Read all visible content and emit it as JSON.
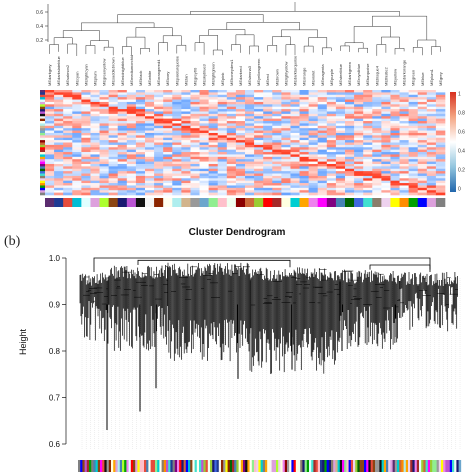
{
  "panel_b_label": "(b)",
  "chart_data": [
    {
      "type": "heatmap",
      "title": "",
      "top_dendrogram_yticks": [
        "0.2",
        "0.4",
        "0.6"
      ],
      "module_labels": [
        "MEdarkgrey",
        "MEdarkslateblue",
        "MEsalmon2",
        "MEcyan",
        "MElightcyan",
        "MEplum",
        "MEgreenyellow",
        "MEsaddlebrown",
        "MEmidnightblue",
        "MEmediumorchid",
        "MEblack",
        "MEwhite",
        "MEorangered4",
        "MEivory",
        "MEpaleturquoise",
        "MEtan",
        "MEgrey60",
        "MEskyblue3",
        "MElightgreen",
        "MEpink",
        "MEhoneydew1",
        "MEdarkred",
        "MEsienna3",
        "MEyellowgreen",
        "MEred",
        "MEbrown",
        "MElightyellow",
        "MEdarkturquoise",
        "MEorange",
        "MEviolet",
        "MEmagenta",
        "MEpurple",
        "MEsteelblue",
        "MEdarkgreen",
        "MEroyalblue",
        "MEturquoise",
        "MEbisque4",
        "MEthistle2",
        "MEyellow",
        "MEdarkorange",
        "MEgreen",
        "MEblue",
        "MEplum1",
        "MEgrey"
      ],
      "colorbar_ticks": [
        "1",
        "0.8",
        "0.6",
        "0.4",
        "0.2",
        "0"
      ],
      "colorbar_colors": [
        "#d7301f",
        "#f4a582",
        "#ffffff",
        "#92c5de",
        "#2166ac"
      ]
    },
    {
      "type": "dendrogram",
      "title": "Cluster Dendrogram",
      "ylabel": "Height",
      "ylim": [
        0.6,
        1.0
      ],
      "yticks": [
        "1.0",
        "0.9",
        "0.8",
        "0.7",
        "0.6"
      ],
      "tick_values": [
        1.0,
        0.9,
        0.8,
        0.7,
        0.6
      ],
      "deep_branch_heights": [
        0.63,
        0.67,
        0.72,
        0.74,
        0.76,
        0.8,
        0.83,
        0.86
      ]
    }
  ]
}
